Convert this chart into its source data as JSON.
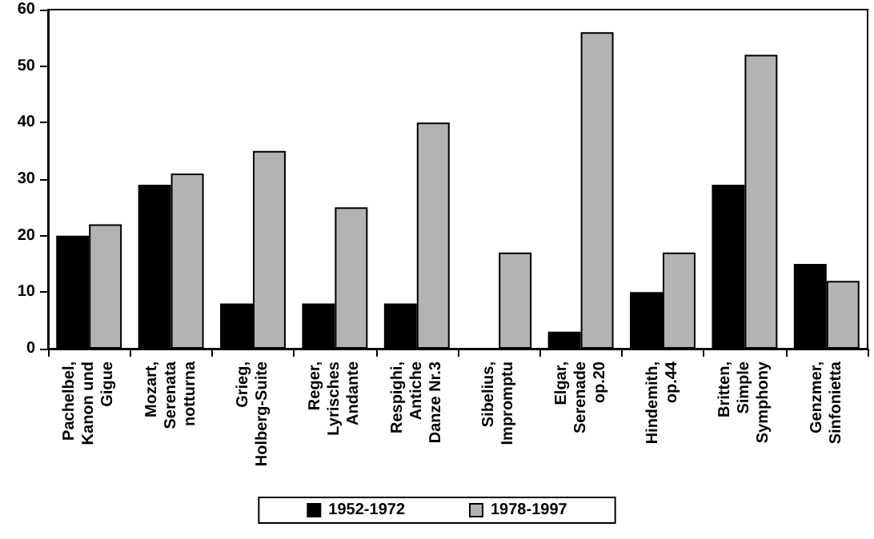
{
  "chart_data": {
    "type": "bar",
    "categories": [
      "Pachelbel,\nKanon und\nGigue",
      "Mozart,\nSerenata\nnotturna",
      "Grieg,\nHolberg-Suite",
      "Reger,\nLyrisches\nAndante",
      "Respighi,\nAntiche\nDanze Nr.3",
      "Sibelius,\nImpromptu",
      "Elgar,\nSerenade\nop.20",
      "Hindemith,\nop.44",
      "Britten,\nSimple\nSymphony",
      "Genzmer,\nSinfonietta"
    ],
    "series": [
      {
        "name": "1952-1972",
        "color": "#000000",
        "values": [
          20,
          29,
          8,
          8,
          8,
          0,
          3,
          10,
          29,
          15
        ]
      },
      {
        "name": "1978-1997",
        "color": "#b3b3b3",
        "values": [
          22,
          31,
          35,
          25,
          40,
          17,
          56,
          17,
          52,
          12
        ]
      }
    ],
    "ylim": [
      0,
      60
    ],
    "yticks": [
      0,
      10,
      20,
      30,
      40,
      50,
      60
    ],
    "grid": false,
    "legend": "bottom"
  }
}
